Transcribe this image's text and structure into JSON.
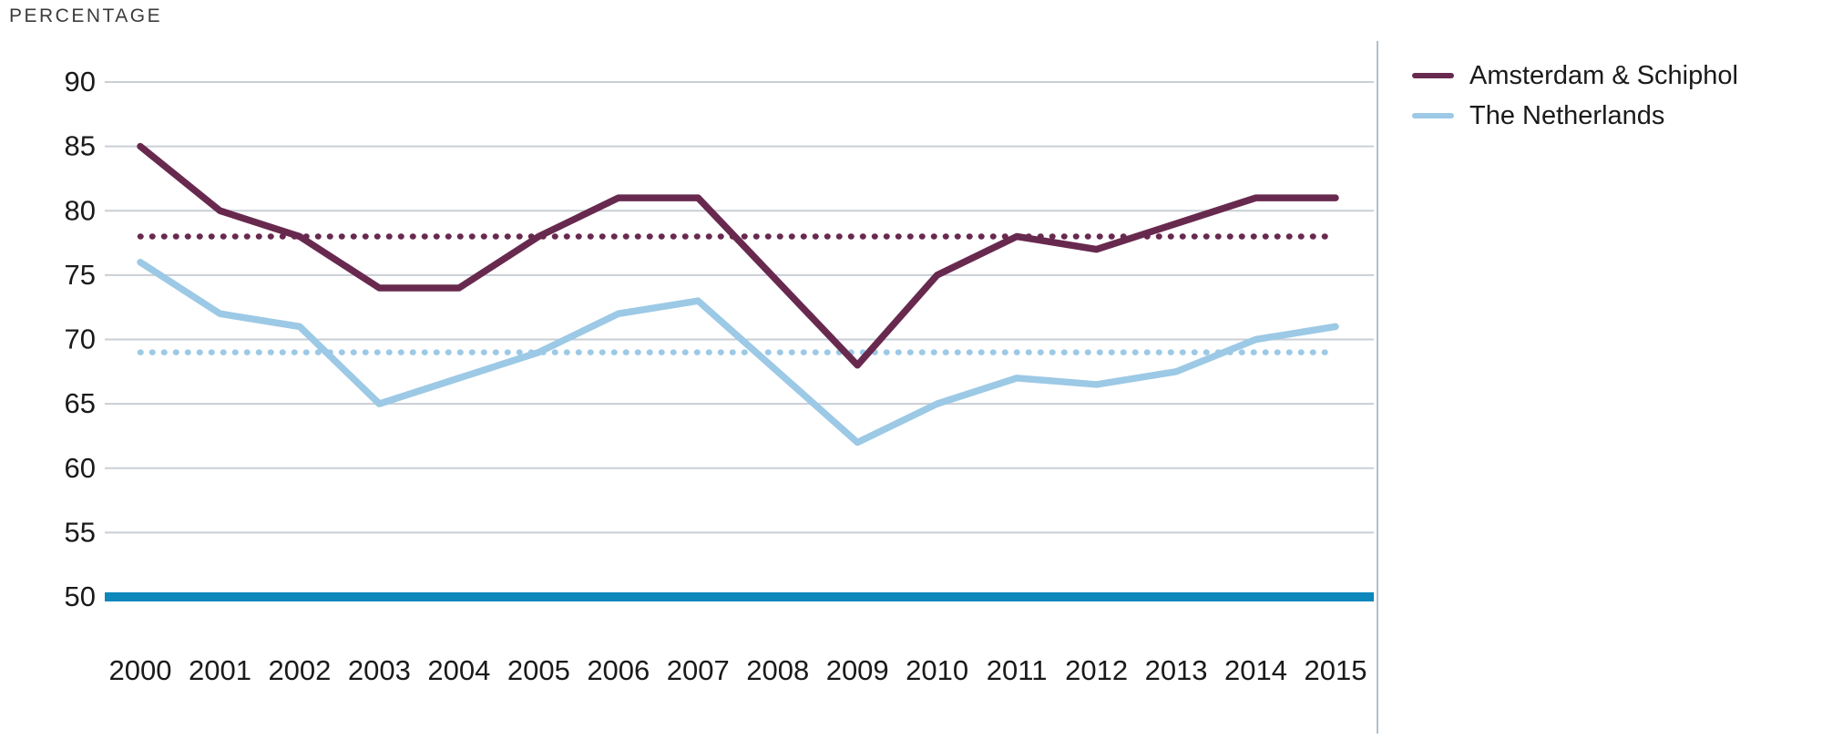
{
  "page": {
    "title": "PERCENTAGE"
  },
  "chart_data": {
    "type": "line",
    "title": "PERCENTAGE",
    "x": [
      "2000",
      "2001",
      "2002",
      "2003",
      "2004",
      "2005",
      "2006",
      "2007",
      "2008",
      "2009",
      "2010",
      "2011",
      "2012",
      "2013",
      "2014",
      "2015"
    ],
    "yticks": [
      90,
      85,
      80,
      75,
      70,
      65,
      60,
      55,
      50
    ],
    "ylim": [
      50,
      90
    ],
    "grid": true,
    "legend_position": "right",
    "baseline": {
      "value": 50,
      "color": "#0e87bb"
    },
    "series": [
      {
        "name": "Amsterdam & Schiphol",
        "color": "#68294f",
        "style": "solid",
        "values": [
          85,
          80,
          78,
          74,
          74,
          78,
          81,
          81,
          74.5,
          68,
          75,
          78,
          77,
          79,
          81,
          81
        ],
        "average": 78,
        "average_style": "dotted"
      },
      {
        "name": "The Netherlands",
        "color": "#9cc9e5",
        "style": "solid",
        "values": [
          76,
          72,
          71,
          65,
          67,
          69,
          72,
          73,
          67.5,
          62,
          65,
          67,
          66.5,
          67.5,
          70,
          71
        ],
        "average": 69,
        "average_style": "dotted"
      }
    ],
    "colors": {
      "gridline": "#c9cfd6",
      "divider": "#b3bfc7",
      "axis_text": "#1a1a1a",
      "title_text": "#3b3b3b",
      "background": "#ffffff"
    }
  }
}
